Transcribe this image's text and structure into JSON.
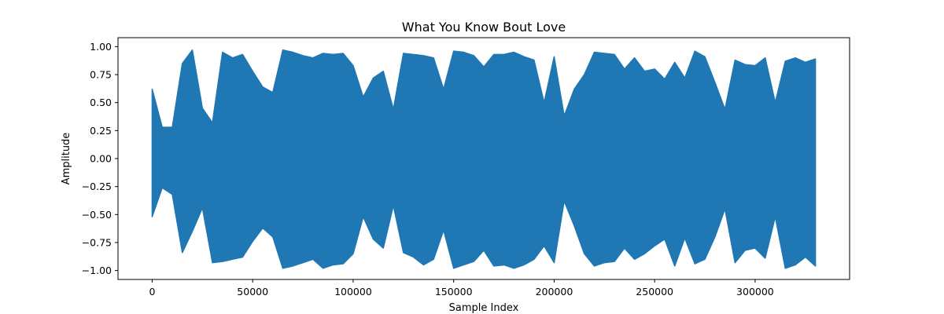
{
  "chart_data": {
    "type": "line",
    "title": "What You Know Bout Love",
    "xlabel": "Sample Index",
    "ylabel": "Amplitude",
    "xlim": [
      -17000,
      347000
    ],
    "ylim": [
      -1.08,
      1.08
    ],
    "x_ticks": [
      0,
      50000,
      100000,
      150000,
      200000,
      250000,
      300000
    ],
    "y_ticks": [
      -1.0,
      -0.75,
      -0.5,
      -0.25,
      0.0,
      0.25,
      0.5,
      0.75,
      1.0
    ],
    "y_tick_labels": [
      "−1.00",
      "−0.75",
      "−0.50",
      "−0.25",
      "0.00",
      "0.25",
      "0.50",
      "0.75",
      "1.00"
    ],
    "grid": false,
    "legend": "none",
    "color": "#1f77b4",
    "series": [
      {
        "sample_step": 5000,
        "max": [
          0.62,
          0.28,
          0.28,
          0.85,
          0.97,
          0.45,
          0.32,
          0.95,
          0.9,
          0.93,
          0.78,
          0.64,
          0.59,
          0.97,
          0.95,
          0.92,
          0.9,
          0.94,
          0.93,
          0.94,
          0.83,
          0.55,
          0.72,
          0.78,
          0.44,
          0.94,
          0.93,
          0.92,
          0.9,
          0.62,
          0.96,
          0.95,
          0.92,
          0.82,
          0.93,
          0.93,
          0.95,
          0.91,
          0.88,
          0.5,
          0.91,
          0.38,
          0.62,
          0.75,
          0.95,
          0.94,
          0.93,
          0.8,
          0.9,
          0.78,
          0.8,
          0.71,
          0.86,
          0.72,
          0.96,
          0.91,
          0.68,
          0.44,
          0.88,
          0.84,
          0.83,
          0.9,
          0.5,
          0.87,
          0.9,
          0.86,
          0.89
        ],
        "min": [
          -0.52,
          -0.26,
          -0.32,
          -0.84,
          -0.65,
          -0.44,
          -0.93,
          -0.92,
          -0.9,
          -0.88,
          -0.74,
          -0.62,
          -0.7,
          -0.98,
          -0.96,
          -0.93,
          -0.9,
          -0.98,
          -0.95,
          -0.94,
          -0.85,
          -0.52,
          -0.72,
          -0.8,
          -0.42,
          -0.84,
          -0.88,
          -0.95,
          -0.9,
          -0.64,
          -0.98,
          -0.95,
          -0.92,
          -0.82,
          -0.96,
          -0.95,
          -0.98,
          -0.95,
          -0.9,
          -0.78,
          -0.93,
          -0.38,
          -0.6,
          -0.85,
          -0.96,
          -0.93,
          -0.92,
          -0.8,
          -0.9,
          -0.85,
          -0.78,
          -0.72,
          -0.96,
          -0.71,
          -0.94,
          -0.9,
          -0.7,
          -0.45,
          -0.93,
          -0.82,
          -0.8,
          -0.89,
          -0.52,
          -0.98,
          -0.95,
          -0.88,
          -0.96
        ]
      }
    ]
  }
}
